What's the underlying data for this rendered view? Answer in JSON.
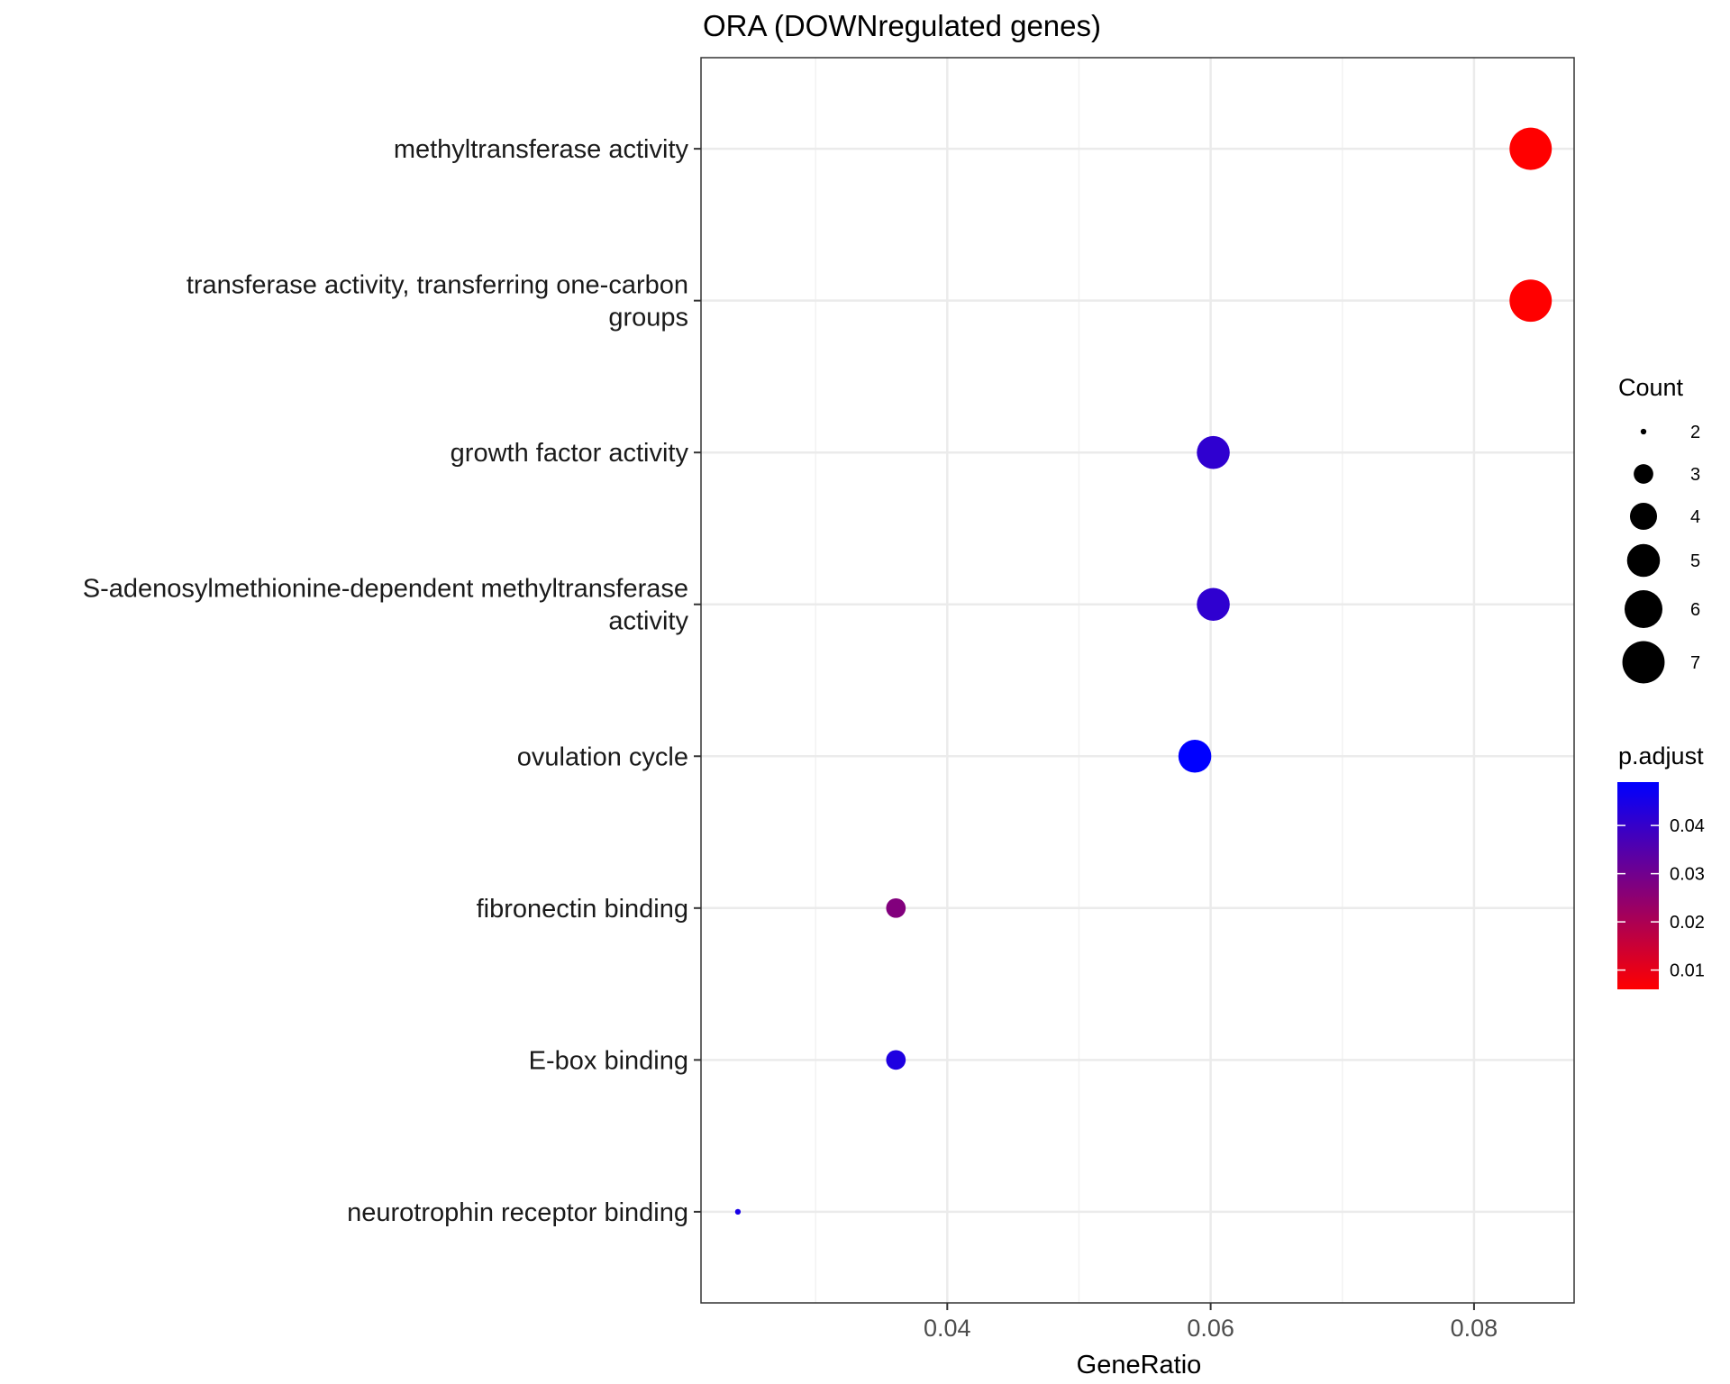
{
  "chart_data": {
    "type": "scatter",
    "title": "ORA (DOWNregulated genes)",
    "xlabel": "GeneRatio",
    "ylabel": "",
    "xlim": [
      0.0213,
      0.0876
    ],
    "x_ticks": [
      0.04,
      0.06,
      0.08
    ],
    "x_tick_labels": [
      "0.04",
      "0.06",
      "0.08"
    ],
    "grid": true,
    "categories": [
      "methyltransferase activity",
      "transferase activity, transferring one-carbon groups",
      "growth factor activity",
      "S-adenosylmethionine-dependent methyltransferase activity",
      "ovulation cycle",
      "fibronectin binding",
      "E-box binding",
      "neurotrophin receptor binding"
    ],
    "category_label_lines": [
      [
        "methyltransferase activity"
      ],
      [
        "transferase activity, transferring one-carbon",
        "groups"
      ],
      [
        "growth factor activity"
      ],
      [
        "S-adenosylmethionine-dependent methyltransferase",
        "activity"
      ],
      [
        "ovulation cycle"
      ],
      [
        "fibronectin binding"
      ],
      [
        "E-box binding"
      ],
      [
        "neurotrophin receptor binding"
      ]
    ],
    "points": [
      {
        "category": "methyltransferase activity",
        "gene_ratio": 0.0843,
        "count": 7,
        "p_adjust": 0.006
      },
      {
        "category": "transferase activity, transferring one-carbon groups",
        "gene_ratio": 0.0843,
        "count": 7,
        "p_adjust": 0.006
      },
      {
        "category": "growth factor activity",
        "gene_ratio": 0.0602,
        "count": 5,
        "p_adjust": 0.041
      },
      {
        "category": "S-adenosylmethionine-dependent methyltransferase activity",
        "gene_ratio": 0.0602,
        "count": 5,
        "p_adjust": 0.041
      },
      {
        "category": "ovulation cycle",
        "gene_ratio": 0.0588,
        "count": 5,
        "p_adjust": 0.049
      },
      {
        "category": "fibronectin binding",
        "gene_ratio": 0.0361,
        "count": 3,
        "p_adjust": 0.027
      },
      {
        "category": "E-box binding",
        "gene_ratio": 0.0361,
        "count": 3,
        "p_adjust": 0.044
      },
      {
        "category": "neurotrophin receptor binding",
        "gene_ratio": 0.0241,
        "count": 2,
        "p_adjust": 0.045
      }
    ],
    "legend": {
      "placement": "right",
      "size": {
        "title": "Count",
        "breaks": [
          2,
          3,
          4,
          5,
          6,
          7
        ],
        "labels": [
          "2",
          "3",
          "4",
          "5",
          "6",
          "7"
        ]
      },
      "color": {
        "title": "p.adjust",
        "range": [
          0.006,
          0.049
        ],
        "breaks": [
          0.01,
          0.02,
          0.03,
          0.04
        ],
        "labels": [
          "0.01",
          "0.02",
          "0.03",
          "0.04"
        ],
        "low_color": "#ff0000",
        "high_color": "#0000ff"
      }
    }
  }
}
